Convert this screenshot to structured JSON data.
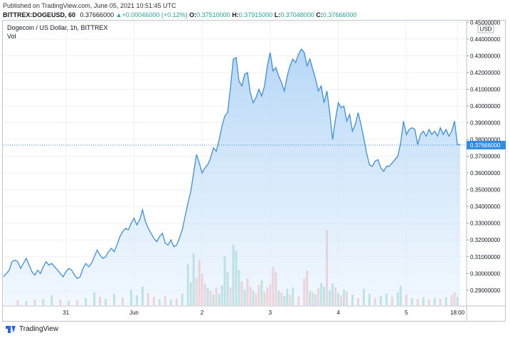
{
  "header": {
    "published": "Published on TradingView.com, June 05, 2021 10:51:45 UTC",
    "symbol": "BITTREX:DOGEUSD, 60",
    "last": "0.37666000",
    "change_arrow": "▲",
    "change": "+0.00046000 (+0.12%)",
    "open_label": "O:",
    "open": "0.37510000",
    "high_label": "H:",
    "high": "0.37915000",
    "low_label": "L:",
    "low": "0.37048000",
    "close_label": "C:",
    "close": "0.37666000"
  },
  "legend": {
    "title": "Dogecoin / US Dollar, 1h, BITTREX",
    "volume_label": "Vol"
  },
  "footer": {
    "brand": "TradingView",
    "logo_icon": "tradingview-logo-icon"
  },
  "colors": {
    "line": "#3d8fdc",
    "area_top": "#a9cff5",
    "area_bottom": "#e8f3fd",
    "vol_up": "#7fcbbf",
    "vol_down": "#f5a5a5",
    "last_tag": "#2f8be6",
    "grid": "#eef0f3"
  },
  "chart_data": {
    "type": "area",
    "title": "Dogecoin / US Dollar, 1h, BITTREX",
    "quote_unit": "USD",
    "ylim": [
      0.281,
      0.451
    ],
    "y_ticks": [
      0.29,
      0.3,
      0.31,
      0.32,
      0.33,
      0.34,
      0.35,
      0.36,
      0.37,
      0.38,
      0.39,
      0.4,
      0.41,
      0.42,
      0.43,
      0.44,
      0.45
    ],
    "y_tick_labels": [
      "0.29000000",
      "0.30000000",
      "0.31000000",
      "0.32000000",
      "0.33000000",
      "0.34000000",
      "0.35000000",
      "0.36000000",
      "0.37000000",
      "0.38000000",
      "0.39000000",
      "0.40000000",
      "0.41000000",
      "0.42000000",
      "0.43000000",
      "0.44000000",
      "0.45000000"
    ],
    "x_ticks": [
      {
        "label": "31",
        "t": 19
      },
      {
        "label": "Jun",
        "t": 43
      },
      {
        "label": "2",
        "t": 67
      },
      {
        "label": "3",
        "t": 91
      },
      {
        "label": "4",
        "t": 115
      },
      {
        "label": "5",
        "t": 139
      },
      {
        "label": "18:00",
        "t": 157
      }
    ],
    "x_range": [
      -3,
      160
    ],
    "last_price": 0.37666,
    "last_price_label": "0.37666000",
    "price_points": [
      [
        -3,
        0.298
      ],
      [
        -1,
        0.302
      ],
      [
        0,
        0.307
      ],
      [
        1,
        0.308
      ],
      [
        2,
        0.307
      ],
      [
        3,
        0.303
      ],
      [
        4,
        0.306
      ],
      [
        5,
        0.309
      ],
      [
        6,
        0.305
      ],
      [
        7,
        0.301
      ],
      [
        8,
        0.299
      ],
      [
        9,
        0.302
      ],
      [
        10,
        0.3
      ],
      [
        11,
        0.304
      ],
      [
        12,
        0.307
      ],
      [
        13,
        0.305
      ],
      [
        14,
        0.306
      ],
      [
        15,
        0.304
      ],
      [
        16,
        0.302
      ],
      [
        17,
        0.3
      ],
      [
        18,
        0.298
      ],
      [
        19,
        0.301
      ],
      [
        20,
        0.303
      ],
      [
        21,
        0.302
      ],
      [
        22,
        0.299
      ],
      [
        23,
        0.297
      ],
      [
        24,
        0.298
      ],
      [
        25,
        0.303
      ],
      [
        26,
        0.306
      ],
      [
        27,
        0.304
      ],
      [
        28,
        0.306
      ],
      [
        29,
        0.31
      ],
      [
        30,
        0.314
      ],
      [
        31,
        0.311
      ],
      [
        32,
        0.309
      ],
      [
        33,
        0.31
      ],
      [
        34,
        0.313
      ],
      [
        35,
        0.315
      ],
      [
        36,
        0.313
      ],
      [
        37,
        0.317
      ],
      [
        38,
        0.322
      ],
      [
        39,
        0.325
      ],
      [
        40,
        0.327
      ],
      [
        41,
        0.326
      ],
      [
        42,
        0.33
      ],
      [
        43,
        0.333
      ],
      [
        44,
        0.329
      ],
      [
        45,
        0.332
      ],
      [
        46,
        0.338
      ],
      [
        47,
        0.331
      ],
      [
        48,
        0.327
      ],
      [
        49,
        0.324
      ],
      [
        50,
        0.321
      ],
      [
        51,
        0.319
      ],
      [
        52,
        0.322
      ],
      [
        53,
        0.324
      ],
      [
        54,
        0.318
      ],
      [
        55,
        0.317
      ],
      [
        56,
        0.32
      ],
      [
        57,
        0.316
      ],
      [
        58,
        0.317
      ],
      [
        59,
        0.321
      ],
      [
        60,
        0.326
      ],
      [
        61,
        0.334
      ],
      [
        62,
        0.342
      ],
      [
        63,
        0.349
      ],
      [
        64,
        0.36
      ],
      [
        65,
        0.371
      ],
      [
        66,
        0.366
      ],
      [
        67,
        0.36
      ],
      [
        68,
        0.363
      ],
      [
        69,
        0.365
      ],
      [
        70,
        0.369
      ],
      [
        71,
        0.375
      ],
      [
        72,
        0.373
      ],
      [
        73,
        0.38
      ],
      [
        74,
        0.388
      ],
      [
        75,
        0.394
      ],
      [
        76,
        0.396
      ],
      [
        77,
        0.411
      ],
      [
        78,
        0.428
      ],
      [
        79,
        0.429
      ],
      [
        80,
        0.415
      ],
      [
        81,
        0.412
      ],
      [
        82,
        0.419
      ],
      [
        83,
        0.42
      ],
      [
        84,
        0.408
      ],
      [
        85,
        0.402
      ],
      [
        86,
        0.405
      ],
      [
        87,
        0.41
      ],
      [
        88,
        0.406
      ],
      [
        89,
        0.412
      ],
      [
        90,
        0.424
      ],
      [
        91,
        0.432
      ],
      [
        92,
        0.421
      ],
      [
        93,
        0.423
      ],
      [
        94,
        0.418
      ],
      [
        95,
        0.414
      ],
      [
        96,
        0.409
      ],
      [
        97,
        0.418
      ],
      [
        98,
        0.424
      ],
      [
        99,
        0.428
      ],
      [
        100,
        0.426
      ],
      [
        101,
        0.431
      ],
      [
        102,
        0.434
      ],
      [
        103,
        0.432
      ],
      [
        104,
        0.424
      ],
      [
        105,
        0.428
      ],
      [
        106,
        0.422
      ],
      [
        107,
        0.416
      ],
      [
        108,
        0.409
      ],
      [
        109,
        0.412
      ],
      [
        110,
        0.402
      ],
      [
        111,
        0.409
      ],
      [
        112,
        0.396
      ],
      [
        113,
        0.38
      ],
      [
        114,
        0.392
      ],
      [
        115,
        0.402
      ],
      [
        116,
        0.399
      ],
      [
        117,
        0.4
      ],
      [
        118,
        0.391
      ],
      [
        119,
        0.395
      ],
      [
        120,
        0.385
      ],
      [
        121,
        0.389
      ],
      [
        122,
        0.396
      ],
      [
        123,
        0.389
      ],
      [
        124,
        0.381
      ],
      [
        125,
        0.372
      ],
      [
        126,
        0.365
      ],
      [
        127,
        0.364
      ],
      [
        128,
        0.367
      ],
      [
        129,
        0.368
      ],
      [
        130,
        0.363
      ],
      [
        131,
        0.361
      ],
      [
        132,
        0.364
      ],
      [
        133,
        0.364
      ],
      [
        134,
        0.366
      ],
      [
        135,
        0.368
      ],
      [
        136,
        0.37
      ],
      [
        137,
        0.378
      ],
      [
        138,
        0.391
      ],
      [
        139,
        0.383
      ],
      [
        140,
        0.386
      ],
      [
        141,
        0.387
      ],
      [
        142,
        0.386
      ],
      [
        143,
        0.377
      ],
      [
        144,
        0.383
      ],
      [
        145,
        0.385
      ],
      [
        146,
        0.382
      ],
      [
        147,
        0.386
      ],
      [
        148,
        0.383
      ],
      [
        149,
        0.385
      ],
      [
        150,
        0.382
      ],
      [
        151,
        0.387
      ],
      [
        152,
        0.383
      ],
      [
        153,
        0.386
      ],
      [
        154,
        0.382
      ],
      [
        155,
        0.385
      ],
      [
        156,
        0.391
      ],
      [
        157,
        0.377
      ],
      [
        158,
        0.377
      ]
    ],
    "volume": [
      {
        "t": 2,
        "v": 0.7,
        "dir": "down"
      },
      {
        "t": 5,
        "v": 0.6,
        "dir": "up"
      },
      {
        "t": 8,
        "v": 0.8,
        "dir": "down"
      },
      {
        "t": 11,
        "v": 0.9,
        "dir": "up"
      },
      {
        "t": 14,
        "v": 1.4,
        "dir": "up"
      },
      {
        "t": 17,
        "v": 0.8,
        "dir": "down"
      },
      {
        "t": 20,
        "v": 0.6,
        "dir": "up"
      },
      {
        "t": 23,
        "v": 0.7,
        "dir": "down"
      },
      {
        "t": 26,
        "v": 1.0,
        "dir": "up"
      },
      {
        "t": 29,
        "v": 1.8,
        "dir": "up"
      },
      {
        "t": 31,
        "v": 1.2,
        "dir": "down"
      },
      {
        "t": 33,
        "v": 0.9,
        "dir": "up"
      },
      {
        "t": 36,
        "v": 1.6,
        "dir": "up"
      },
      {
        "t": 39,
        "v": 1.1,
        "dir": "down"
      },
      {
        "t": 42,
        "v": 2.2,
        "dir": "up"
      },
      {
        "t": 44,
        "v": 1.4,
        "dir": "up"
      },
      {
        "t": 46,
        "v": 2.6,
        "dir": "up"
      },
      {
        "t": 48,
        "v": 1.7,
        "dir": "down"
      },
      {
        "t": 50,
        "v": 1.2,
        "dir": "down"
      },
      {
        "t": 52,
        "v": 0.9,
        "dir": "up"
      },
      {
        "t": 54,
        "v": 1.3,
        "dir": "down"
      },
      {
        "t": 56,
        "v": 0.8,
        "dir": "up"
      },
      {
        "t": 58,
        "v": 1.0,
        "dir": "down"
      },
      {
        "t": 60,
        "v": 1.6,
        "dir": "up"
      },
      {
        "t": 62,
        "v": 5.7,
        "dir": "up"
      },
      {
        "t": 63,
        "v": 3.2,
        "dir": "up"
      },
      {
        "t": 64,
        "v": 7.2,
        "dir": "up"
      },
      {
        "t": 65,
        "v": 3.8,
        "dir": "down"
      },
      {
        "t": 66,
        "v": 6.3,
        "dir": "down"
      },
      {
        "t": 67,
        "v": 4.4,
        "dir": "down"
      },
      {
        "t": 68,
        "v": 3.0,
        "dir": "down"
      },
      {
        "t": 69,
        "v": 2.4,
        "dir": "up"
      },
      {
        "t": 70,
        "v": 2.0,
        "dir": "down"
      },
      {
        "t": 71,
        "v": 1.5,
        "dir": "up"
      },
      {
        "t": 72,
        "v": 2.5,
        "dir": "down"
      },
      {
        "t": 73,
        "v": 1.6,
        "dir": "up"
      },
      {
        "t": 74,
        "v": 2.8,
        "dir": "up"
      },
      {
        "t": 75,
        "v": 6.8,
        "dir": "up"
      },
      {
        "t": 76,
        "v": 4.6,
        "dir": "up"
      },
      {
        "t": 77,
        "v": 2.5,
        "dir": "down"
      },
      {
        "t": 78,
        "v": 8.4,
        "dir": "up"
      },
      {
        "t": 79,
        "v": 7.6,
        "dir": "up"
      },
      {
        "t": 80,
        "v": 4.9,
        "dir": "up"
      },
      {
        "t": 81,
        "v": 3.3,
        "dir": "down"
      },
      {
        "t": 82,
        "v": 2.2,
        "dir": "up"
      },
      {
        "t": 83,
        "v": 3.7,
        "dir": "down"
      },
      {
        "t": 84,
        "v": 2.6,
        "dir": "down"
      },
      {
        "t": 85,
        "v": 2.0,
        "dir": "up"
      },
      {
        "t": 86,
        "v": 1.6,
        "dir": "down"
      },
      {
        "t": 87,
        "v": 2.8,
        "dir": "down"
      },
      {
        "t": 88,
        "v": 3.5,
        "dir": "up"
      },
      {
        "t": 89,
        "v": 1.9,
        "dir": "down"
      },
      {
        "t": 90,
        "v": 2.5,
        "dir": "down"
      },
      {
        "t": 91,
        "v": 2.9,
        "dir": "down"
      },
      {
        "t": 92,
        "v": 5.3,
        "dir": "down"
      },
      {
        "t": 93,
        "v": 4.6,
        "dir": "down"
      },
      {
        "t": 94,
        "v": 2.1,
        "dir": "up"
      },
      {
        "t": 95,
        "v": 1.8,
        "dir": "down"
      },
      {
        "t": 96,
        "v": 1.3,
        "dir": "up"
      },
      {
        "t": 97,
        "v": 2.3,
        "dir": "up"
      },
      {
        "t": 98,
        "v": 1.5,
        "dir": "down"
      },
      {
        "t": 99,
        "v": 2.5,
        "dir": "up"
      },
      {
        "t": 101,
        "v": 1.2,
        "dir": "down"
      },
      {
        "t": 103,
        "v": 3.7,
        "dir": "down"
      },
      {
        "t": 104,
        "v": 4.8,
        "dir": "down"
      },
      {
        "t": 105,
        "v": 2.0,
        "dir": "up"
      },
      {
        "t": 106,
        "v": 1.8,
        "dir": "down"
      },
      {
        "t": 107,
        "v": 1.5,
        "dir": "up"
      },
      {
        "t": 108,
        "v": 2.4,
        "dir": "down"
      },
      {
        "t": 109,
        "v": 3.1,
        "dir": "up"
      },
      {
        "t": 110,
        "v": 2.6,
        "dir": "up"
      },
      {
        "t": 111,
        "v": 10.5,
        "dir": "down"
      },
      {
        "t": 112,
        "v": 2.1,
        "dir": "up"
      },
      {
        "t": 113,
        "v": 3.0,
        "dir": "up"
      },
      {
        "t": 114,
        "v": 2.5,
        "dir": "down"
      },
      {
        "t": 115,
        "v": 1.7,
        "dir": "up"
      },
      {
        "t": 116,
        "v": 1.4,
        "dir": "down"
      },
      {
        "t": 117,
        "v": 2.2,
        "dir": "up"
      },
      {
        "t": 118,
        "v": 1.9,
        "dir": "down"
      },
      {
        "t": 120,
        "v": 1.5,
        "dir": "up"
      },
      {
        "t": 122,
        "v": 1.0,
        "dir": "down"
      },
      {
        "t": 124,
        "v": 2.3,
        "dir": "up"
      },
      {
        "t": 126,
        "v": 1.6,
        "dir": "up"
      },
      {
        "t": 128,
        "v": 1.0,
        "dir": "down"
      },
      {
        "t": 130,
        "v": 1.3,
        "dir": "up"
      },
      {
        "t": 132,
        "v": 1.6,
        "dir": "up"
      },
      {
        "t": 134,
        "v": 1.2,
        "dir": "down"
      },
      {
        "t": 136,
        "v": 1.8,
        "dir": "up"
      },
      {
        "t": 137,
        "v": 2.7,
        "dir": "up"
      },
      {
        "t": 139,
        "v": 1.5,
        "dir": "down"
      },
      {
        "t": 141,
        "v": 1.0,
        "dir": "up"
      },
      {
        "t": 143,
        "v": 0.9,
        "dir": "down"
      },
      {
        "t": 145,
        "v": 1.1,
        "dir": "up"
      },
      {
        "t": 147,
        "v": 0.8,
        "dir": "down"
      },
      {
        "t": 149,
        "v": 1.0,
        "dir": "up"
      },
      {
        "t": 151,
        "v": 0.9,
        "dir": "down"
      },
      {
        "t": 153,
        "v": 1.1,
        "dir": "up"
      },
      {
        "t": 155,
        "v": 1.4,
        "dir": "down"
      },
      {
        "t": 156,
        "v": 1.8,
        "dir": "down"
      },
      {
        "t": 157,
        "v": 1.2,
        "dir": "up"
      }
    ],
    "volume_max": 10.5,
    "grid": true
  }
}
